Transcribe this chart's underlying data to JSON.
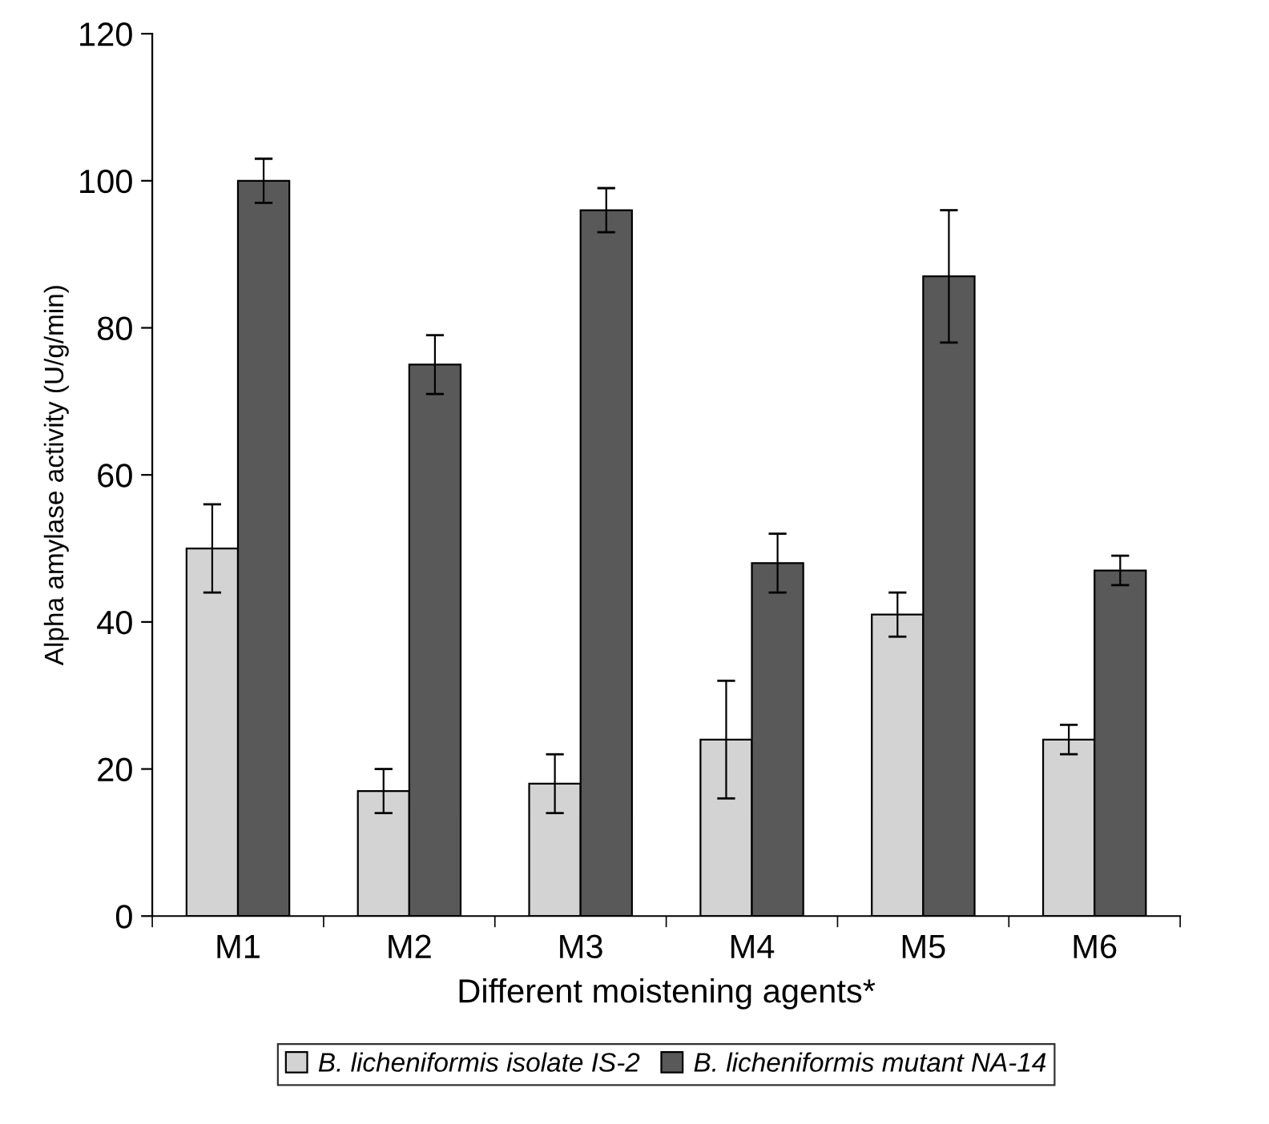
{
  "chart_data": {
    "type": "bar",
    "xlabel": "Different moistening agents*",
    "ylabel": "Alpha amylase activity (U/g/min)",
    "categories": [
      "M1",
      "M2",
      "M3",
      "M4",
      "M5",
      "M6"
    ],
    "series": [
      {
        "name": "B. licheniformis isolate IS-2",
        "color": "#d3d3d3",
        "values": [
          50,
          17,
          18,
          24,
          41,
          24
        ],
        "errors": [
          6,
          3,
          4,
          8,
          3,
          2
        ]
      },
      {
        "name": "B. licheniformis mutant NA-14",
        "color": "#595959",
        "values": [
          100,
          75,
          96,
          48,
          87,
          47
        ],
        "errors": [
          3,
          4,
          3,
          4,
          9,
          2
        ]
      }
    ],
    "ylim": [
      0,
      120
    ],
    "yticks": [
      0,
      20,
      40,
      60,
      80,
      100,
      120
    ],
    "grid": false,
    "legend": "bottom"
  }
}
